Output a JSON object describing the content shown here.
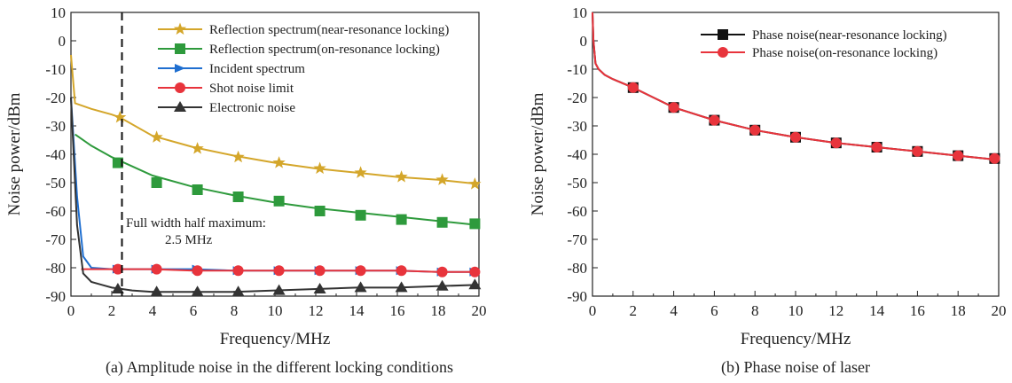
{
  "colors": {
    "gold": "#D4A62A",
    "green": "#2E9A3C",
    "blue": "#1F6FD0",
    "red": "#E8343C",
    "dark": "#333333",
    "black": "#111111"
  },
  "chart_data": [
    {
      "type": "line",
      "caption": "(a) Amplitude noise in the different locking conditions",
      "xlabel": "Frequency/MHz",
      "ylabel": "Noise power/dBm",
      "xlim": [
        0,
        20
      ],
      "ylim": [
        -90,
        10
      ],
      "xticks": [
        0,
        2,
        4,
        6,
        8,
        10,
        12,
        14,
        16,
        18,
        20
      ],
      "yticks": [
        10,
        0,
        -10,
        -20,
        -30,
        -40,
        -50,
        -60,
        -70,
        -80,
        -90
      ],
      "legend_position": "top-right",
      "annotation": {
        "text_line1": "Full width half maximum:",
        "text_line2": "2.5 MHz",
        "x_line": 2.5
      },
      "series": [
        {
          "name": "Reflection spectrum(near-resonance locking)",
          "marker": "star",
          "color": "#D4A62A",
          "x": [
            0,
            0.2,
            1,
            2,
            2.4,
            4,
            6,
            8,
            10,
            12,
            14,
            16,
            18,
            20
          ],
          "y": [
            -5,
            -22,
            -24,
            -26,
            -27,
            -33.5,
            -37.5,
            -40.5,
            -43,
            -45,
            -46.5,
            -48,
            -49,
            -50.5
          ],
          "markers_x": [
            2.4,
            4.2,
            6.2,
            8.2,
            10.2,
            12.2,
            14.2,
            16.2,
            18.2,
            19.8
          ],
          "markers_y": [
            -27,
            -34,
            -38,
            -41,
            -43,
            -45,
            -46.5,
            -48,
            -49,
            -50.5
          ]
        },
        {
          "name": "Reflection spectrum(on-resonance locking)",
          "marker": "square",
          "color": "#2E9A3C",
          "x": [
            0.2,
            1,
            2,
            4,
            6,
            8,
            10,
            12,
            14,
            16,
            18,
            20
          ],
          "y": [
            -33,
            -37,
            -41,
            -47.5,
            -51.5,
            -54.5,
            -57,
            -59,
            -60.5,
            -62,
            -63.5,
            -65
          ],
          "markers_x": [
            2.3,
            4.2,
            6.2,
            8.2,
            10.2,
            12.2,
            14.2,
            16.2,
            18.2,
            19.8
          ],
          "markers_y": [
            -43,
            -50,
            -52.5,
            -55,
            -56.5,
            -60,
            -61.5,
            -63,
            -64,
            -64.5
          ]
        },
        {
          "name": "Incident spectrum",
          "marker": "arrow",
          "color": "#1F6FD0",
          "x": [
            0,
            0.3,
            0.6,
            1,
            2,
            4,
            6,
            8,
            10,
            12,
            14,
            16,
            18,
            20
          ],
          "y": [
            -20,
            -55,
            -76,
            -80,
            -80.5,
            -80.5,
            -80.5,
            -81,
            -81,
            -81,
            -81,
            -81,
            -81.5,
            -81.5
          ],
          "markers_x": [
            2.3,
            4.2,
            6.2,
            8.2,
            10.2,
            12.2,
            14.2,
            16.2,
            18.2,
            19.8
          ],
          "markers_y": [
            -80.5,
            -80.5,
            -80.5,
            -81,
            -81,
            -81,
            -81,
            -81,
            -81.5,
            -81.5
          ]
        },
        {
          "name": "Shot noise limit",
          "marker": "circle",
          "color": "#E8343C",
          "x": [
            0.5,
            1,
            2,
            4,
            6,
            8,
            10,
            12,
            14,
            16,
            18,
            20
          ],
          "y": [
            -80.5,
            -80.5,
            -80.5,
            -80.5,
            -81,
            -81,
            -81,
            -81,
            -81,
            -81,
            -81.5,
            -81.5
          ],
          "markers_x": [
            2.3,
            4.2,
            6.2,
            8.2,
            10.2,
            12.2,
            14.2,
            16.2,
            18.2,
            19.8
          ],
          "markers_y": [
            -80.5,
            -80.5,
            -81,
            -81,
            -81,
            -81,
            -81,
            -81,
            -81.5,
            -81.5
          ]
        },
        {
          "name": "Electronic noise",
          "marker": "triangle",
          "color": "#333333",
          "x": [
            0,
            0.3,
            0.6,
            1,
            1.5,
            2,
            3,
            4,
            6,
            8,
            10,
            12,
            14,
            16,
            18,
            20
          ],
          "y": [
            -20,
            -65,
            -82,
            -85,
            -86,
            -87,
            -88,
            -88.5,
            -88.5,
            -88.5,
            -88,
            -87.5,
            -87,
            -87,
            -86.5,
            -86
          ],
          "markers_x": [
            2.3,
            4.2,
            6.2,
            8.2,
            10.2,
            12.2,
            14.2,
            16.2,
            18.2,
            19.8
          ],
          "markers_y": [
            -87.5,
            -88.5,
            -88.5,
            -88.5,
            -88,
            -87.5,
            -87,
            -87,
            -86.5,
            -86
          ]
        }
      ]
    },
    {
      "type": "line",
      "caption": "(b) Phase noise of laser",
      "xlabel": "Frequency/MHz",
      "ylabel": "Noise power/dBm",
      "xlim": [
        0,
        20
      ],
      "ylim": [
        -90,
        10
      ],
      "xticks": [
        0,
        2,
        4,
        6,
        8,
        10,
        12,
        14,
        16,
        18,
        20
      ],
      "yticks": [
        10,
        0,
        -10,
        -20,
        -30,
        -40,
        -50,
        -60,
        -70,
        -80,
        -90
      ],
      "legend_position": "top-right",
      "series": [
        {
          "name": "Phase noise(near-resonance locking)",
          "marker": "square",
          "color": "#111111",
          "x": [
            0,
            0.05,
            0.15,
            0.3,
            0.6,
            1,
            2,
            3,
            4,
            6,
            8,
            10,
            12,
            14,
            16,
            18,
            20
          ],
          "y": [
            10,
            0,
            -8,
            -10,
            -12,
            -13.5,
            -16.5,
            -20,
            -23.5,
            -28,
            -31.5,
            -34,
            -36,
            -37.5,
            -39,
            -40.5,
            -42
          ],
          "markers_x": [
            2,
            4,
            6,
            8,
            10,
            12,
            14,
            16,
            18,
            19.8
          ],
          "markers_y": [
            -16.5,
            -23.5,
            -28,
            -31.5,
            -34,
            -36,
            -37.5,
            -39,
            -40.5,
            -41.5
          ]
        },
        {
          "name": "Phase noise(on-resonance locking)",
          "marker": "circle",
          "color": "#E8343C",
          "x": [
            0,
            0.05,
            0.15,
            0.3,
            0.6,
            1,
            2,
            3,
            4,
            6,
            8,
            10,
            12,
            14,
            16,
            18,
            20
          ],
          "y": [
            10,
            0,
            -8,
            -10,
            -12,
            -13.5,
            -16.5,
            -20,
            -23.5,
            -28,
            -31.5,
            -34,
            -36,
            -37.5,
            -39,
            -40.5,
            -42
          ],
          "markers_x": [
            2,
            4,
            6,
            8,
            10,
            12,
            14,
            16,
            18,
            19.8
          ],
          "markers_y": [
            -16.5,
            -23.5,
            -28,
            -31.5,
            -34,
            -36,
            -37.5,
            -39,
            -40.5,
            -41.5
          ]
        }
      ]
    }
  ]
}
